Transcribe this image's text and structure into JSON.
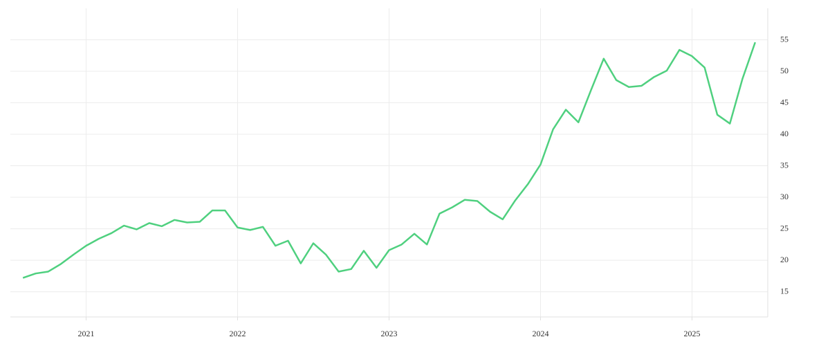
{
  "chart_data": {
    "type": "line",
    "x": [
      2020.583,
      2020.667,
      2020.75,
      2020.833,
      2020.917,
      2021.0,
      2021.083,
      2021.167,
      2021.25,
      2021.333,
      2021.417,
      2021.5,
      2021.583,
      2021.667,
      2021.75,
      2021.833,
      2021.917,
      2022.0,
      2022.083,
      2022.167,
      2022.25,
      2022.333,
      2022.417,
      2022.5,
      2022.583,
      2022.667,
      2022.75,
      2022.833,
      2022.917,
      2023.0,
      2023.083,
      2023.167,
      2023.25,
      2023.333,
      2023.417,
      2023.5,
      2023.583,
      2023.667,
      2023.75,
      2023.833,
      2023.917,
      2024.0,
      2024.083,
      2024.167,
      2024.25,
      2024.333,
      2024.417,
      2024.5,
      2024.583,
      2024.667,
      2024.75,
      2024.833,
      2024.917,
      2025.0,
      2025.083,
      2025.167,
      2025.25,
      2025.333,
      2025.417
    ],
    "values": [
      17.2,
      17.9,
      18.2,
      19.4,
      20.9,
      22.3,
      23.4,
      24.3,
      25.5,
      24.9,
      25.9,
      25.4,
      26.4,
      26.0,
      26.1,
      27.9,
      27.9,
      25.2,
      24.8,
      25.3,
      22.3,
      23.1,
      19.5,
      22.7,
      20.9,
      18.2,
      18.6,
      21.5,
      18.8,
      21.6,
      22.5,
      24.2,
      22.5,
      27.4,
      28.4,
      29.6,
      29.4,
      27.7,
      26.5,
      29.5,
      32.1,
      35.2,
      40.8,
      43.9,
      41.9,
      47.0,
      52.0,
      48.6,
      47.5,
      47.7,
      49.1,
      50.1,
      53.4,
      52.4,
      50.6,
      43.1,
      41.7,
      48.8,
      54.6
    ],
    "color": "#4fd07f",
    "xlim": [
      2020.5,
      2025.5
    ],
    "xticks": [
      2021,
      2022,
      2023,
      2024,
      2025
    ],
    "ylim": [
      11,
      60
    ],
    "yticks": [
      15,
      20,
      25,
      30,
      35,
      40,
      45,
      50,
      55
    ],
    "grid": true,
    "y_axis_side": "right"
  }
}
